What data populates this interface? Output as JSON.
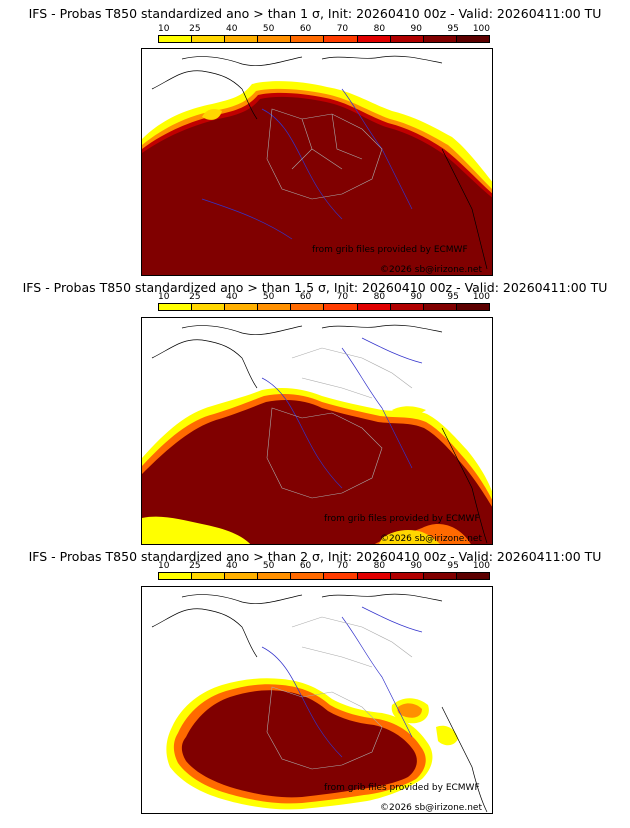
{
  "colorbar": {
    "labels": [
      "10",
      "25",
      "40",
      "50",
      "60",
      "70",
      "80",
      "90",
      "95",
      "100"
    ],
    "colors": [
      "#ffff00",
      "#ffd700",
      "#ffb000",
      "#ff9000",
      "#ff6a00",
      "#ff3c00",
      "#e00000",
      "#b00000",
      "#800000",
      "#5c0000"
    ]
  },
  "panels": [
    {
      "title": "IFS - Probas T850  standardized ano > than 1 σ, Init: 20260410 00z - Valid: 20260411:00 TU",
      "credit1": "from grib files provided by ECMWF",
      "credit2": "©2026 sb@irizone.net"
    },
    {
      "title": "IFS - Probas T850  standardized ano > than 1.5 σ, Init: 20260410 00z - Valid: 20260411:00 TU",
      "credit1": "from grib files provided by ECMWF",
      "credit2": "©2026 sb@irizone.net"
    },
    {
      "title": "IFS - Probas T850  standardized ano > than 2 σ, Init: 20260410 00z - Valid: 20260411:00 TU",
      "credit1": "from grib files provided by ECMWF",
      "credit2": "©2026 sb@irizone.net"
    }
  ]
}
